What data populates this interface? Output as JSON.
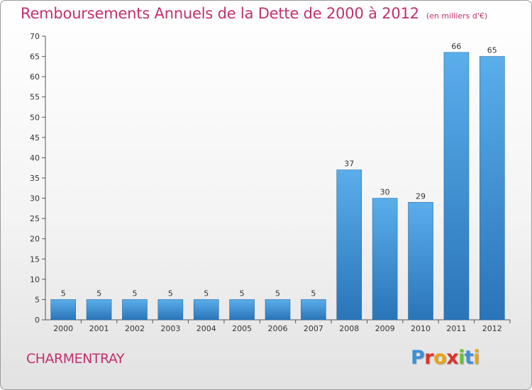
{
  "header": {
    "title": "Remboursements Annuels de la Dette de 2000 à 2012",
    "subtitle": "(en milliers d'€)"
  },
  "footer": {
    "commune": "CHARMENTRAY",
    "logo_text": "Proxiti",
    "logo_colors": [
      "#3d8fd6",
      "#d8342b",
      "#e8a417",
      "#d8342b",
      "#6bbf3a",
      "#3d8fd6",
      "#e8a417"
    ]
  },
  "chart_data": {
    "type": "bar",
    "categories": [
      "2000",
      "2001",
      "2002",
      "2003",
      "2004",
      "2005",
      "2006",
      "2007",
      "2008",
      "2009",
      "2010",
      "2011",
      "2012"
    ],
    "values": [
      5,
      5,
      5,
      5,
      5,
      5,
      5,
      5,
      37,
      30,
      29,
      66,
      65
    ],
    "ylim": [
      0,
      70
    ],
    "yticks": [
      0,
      5,
      10,
      15,
      20,
      25,
      30,
      35,
      40,
      45,
      50,
      55,
      60,
      65,
      70
    ],
    "grid": false,
    "bar_color": "#3d8fd6",
    "bar_color_light": "#5aaeea",
    "bar_color_dark": "#2a74b8"
  }
}
